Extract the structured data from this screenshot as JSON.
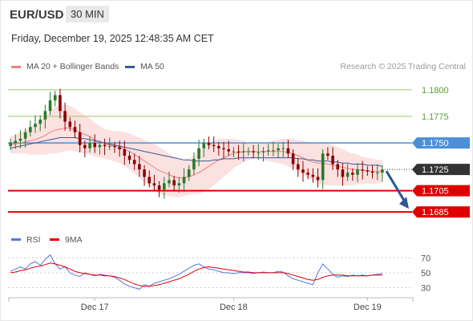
{
  "header": {
    "pair": "EUR/USD",
    "timeframe": "30 MIN",
    "timestamp": "Friday, December 19, 2025 12:48:35 AM CET"
  },
  "colors": {
    "bollinger": "#f08080",
    "ma50": "#3a5a9a",
    "band_fill": "#fcdcdc",
    "up_candle": "#2a7a2a",
    "down_candle": "#8b0000",
    "resistance": "#9acd6a",
    "support": "#e00000",
    "pivot": "#4a90d9",
    "rsi": "#5577dd",
    "rsi_ma": "#e00000",
    "arrow": "#2f5597"
  },
  "chart_data": [
    {
      "type": "candlestick",
      "legend": [
        {
          "name": "MA 20 + Bollinger Bands",
          "color": "#f08080"
        },
        {
          "name": "MA 50",
          "color": "#3a5a9a"
        }
      ],
      "watermark": "Research © 2025 Trading Central",
      "ylim": [
        1.1673,
        1.1812
      ],
      "x_ticks": [
        "Dec 17",
        "Dec 18",
        "Dec 19"
      ],
      "levels": [
        {
          "value": 1.18,
          "label": "1.1800",
          "kind": "resistance"
        },
        {
          "value": 1.1775,
          "label": "1.1775",
          "kind": "resistance"
        },
        {
          "value": 1.175,
          "label": "1.1750",
          "kind": "pivot"
        },
        {
          "value": 1.1705,
          "label": "1.1705",
          "kind": "support"
        },
        {
          "value": 1.1685,
          "label": "1.1685",
          "kind": "support"
        }
      ],
      "last_price": {
        "value": 1.1725,
        "label": "1.1725"
      },
      "forecast_arrow": {
        "from": 1.1725,
        "to": 1.1685
      },
      "close": [
        1.175,
        1.1752,
        1.1754,
        1.176,
        1.1765,
        1.1768,
        1.1772,
        1.178,
        1.179,
        1.1795,
        1.178,
        1.177,
        1.1765,
        1.176,
        1.1748,
        1.1745,
        1.175,
        1.1746,
        1.1748,
        1.1747,
        1.1747,
        1.1746,
        1.1744,
        1.1738,
        1.1734,
        1.173,
        1.1725,
        1.1718,
        1.1712,
        1.171,
        1.1706,
        1.1712,
        1.1715,
        1.171,
        1.1712,
        1.1718,
        1.1725,
        1.1735,
        1.1745,
        1.175,
        1.1748,
        1.1747,
        1.1745,
        1.1744,
        1.1742,
        1.1742,
        1.1741,
        1.1742,
        1.1742,
        1.1741,
        1.1741,
        1.1742,
        1.1743,
        1.1743,
        1.1745,
        1.1745,
        1.174,
        1.173,
        1.1725,
        1.1722,
        1.172,
        1.1718,
        1.1715,
        1.174,
        1.1738,
        1.173,
        1.1725,
        1.1718,
        1.1722,
        1.172,
        1.1725,
        1.1724,
        1.1723,
        1.1722,
        1.1722,
        1.1725
      ],
      "ma20": [
        1.1748,
        1.1749,
        1.175,
        1.1751,
        1.1752,
        1.1753,
        1.1755,
        1.1757,
        1.176,
        1.1762,
        1.1763,
        1.1764,
        1.1764,
        1.1762,
        1.176,
        1.1758,
        1.1756,
        1.1753,
        1.1751,
        1.1749,
        1.1748,
        1.1747,
        1.1746,
        1.1744,
        1.1742,
        1.1739,
        1.1736,
        1.1733,
        1.173,
        1.1727,
        1.1724,
        1.1722,
        1.172,
        1.1718,
        1.1717,
        1.1717,
        1.1718,
        1.172,
        1.1722,
        1.1725,
        1.1728,
        1.1731,
        1.1734,
        1.1736,
        1.1738,
        1.174,
        1.1741,
        1.1742,
        1.1742,
        1.1742,
        1.1742,
        1.1742,
        1.1742,
        1.1742,
        1.1742,
        1.1742,
        1.1741,
        1.174,
        1.1738,
        1.1736,
        1.1734,
        1.1732,
        1.1731,
        1.1731,
        1.173,
        1.1729,
        1.1728,
        1.1727,
        1.1726,
        1.1725,
        1.1725,
        1.1724,
        1.1724,
        1.1723,
        1.1723,
        1.1723
      ],
      "band_width": [
        0.0008,
        0.0009,
        0.001,
        0.0011,
        0.0013,
        0.0014,
        0.0016,
        0.0018,
        0.002,
        0.0022,
        0.0022,
        0.0022,
        0.0021,
        0.002,
        0.0019,
        0.0018,
        0.0017,
        0.0016,
        0.0015,
        0.0014,
        0.0014,
        0.0014,
        0.0015,
        0.0016,
        0.0017,
        0.0018,
        0.0019,
        0.002,
        0.0021,
        0.0022,
        0.0022,
        0.0021,
        0.002,
        0.0019,
        0.0018,
        0.0017,
        0.0017,
        0.0018,
        0.002,
        0.0021,
        0.0022,
        0.0021,
        0.002,
        0.0018,
        0.0016,
        0.0014,
        0.0012,
        0.001,
        0.0008,
        0.0007,
        0.0007,
        0.0008,
        0.0009,
        0.001,
        0.0011,
        0.0012,
        0.0013,
        0.0014,
        0.0015,
        0.0016,
        0.0017,
        0.0018,
        0.0019,
        0.002,
        0.002,
        0.0019,
        0.0018,
        0.0017,
        0.0016,
        0.0015,
        0.0014,
        0.0013,
        0.0012,
        0.0012,
        0.0011,
        0.0011
      ],
      "ma50": [
        1.1745,
        1.1746,
        1.1747,
        1.1748,
        1.1749,
        1.175,
        1.1751,
        1.1752,
        1.1753,
        1.1754,
        1.1755,
        1.1755,
        1.1755,
        1.1755,
        1.1754,
        1.1754,
        1.1753,
        1.1752,
        1.1751,
        1.175,
        1.1749,
        1.1748,
        1.1747,
        1.1746,
        1.1745,
        1.1744,
        1.1743,
        1.1742,
        1.1741,
        1.174,
        1.1739,
        1.1738,
        1.1737,
        1.1736,
        1.1735,
        1.1734,
        1.1734,
        1.1733,
        1.1733,
        1.1733,
        1.1733,
        1.1734,
        1.1734,
        1.1735,
        1.1735,
        1.1735,
        1.1736,
        1.1736,
        1.1736,
        1.1736,
        1.1736,
        1.1736,
        1.1736,
        1.1736,
        1.1736,
        1.1736,
        1.1736,
        1.1736,
        1.1735,
        1.1735,
        1.1734,
        1.1734,
        1.1733,
        1.1733,
        1.1733,
        1.1732,
        1.1732,
        1.1731,
        1.1731,
        1.173,
        1.173,
        1.173,
        1.1729,
        1.1729,
        1.1729,
        1.1728
      ]
    },
    {
      "type": "line",
      "legend": [
        {
          "name": "RSI",
          "color": "#5577dd"
        },
        {
          "name": "9MA",
          "color": "#e00000"
        }
      ],
      "ylim": [
        22,
        80
      ],
      "y_ticks": [
        {
          "value": 70,
          "label": "70"
        },
        {
          "value": 50,
          "label": "50"
        },
        {
          "value": 30,
          "label": "30"
        }
      ],
      "rsi": [
        52,
        55,
        58,
        55,
        62,
        65,
        60,
        68,
        74,
        62,
        55,
        58,
        50,
        47,
        45,
        50,
        48,
        46,
        48,
        47,
        46,
        44,
        40,
        35,
        32,
        30,
        28,
        34,
        32,
        36,
        38,
        40,
        42,
        45,
        48,
        52,
        56,
        60,
        62,
        58,
        55,
        54,
        52,
        50,
        50,
        49,
        50,
        50,
        50,
        49,
        50,
        51,
        50,
        50,
        52,
        51,
        46,
        42,
        40,
        38,
        36,
        34,
        50,
        62,
        55,
        48,
        44,
        46,
        45,
        47,
        46,
        47,
        46,
        47,
        48,
        49
      ],
      "rsi_ma": [
        50,
        51,
        53,
        54,
        56,
        58,
        59,
        61,
        63,
        62,
        60,
        58,
        55,
        52,
        50,
        49,
        48,
        47,
        47,
        46,
        46,
        45,
        43,
        41,
        38,
        35,
        33,
        32,
        32,
        33,
        34,
        36,
        38,
        40,
        42,
        45,
        48,
        52,
        55,
        57,
        58,
        57,
        56,
        55,
        54,
        53,
        52,
        51,
        51,
        50,
        50,
        50,
        50,
        50,
        50,
        50,
        49,
        47,
        45,
        43,
        41,
        40,
        41,
        44,
        46,
        47,
        47,
        47,
        46,
        46,
        46,
        46,
        46,
        47,
        47,
        47
      ]
    }
  ]
}
